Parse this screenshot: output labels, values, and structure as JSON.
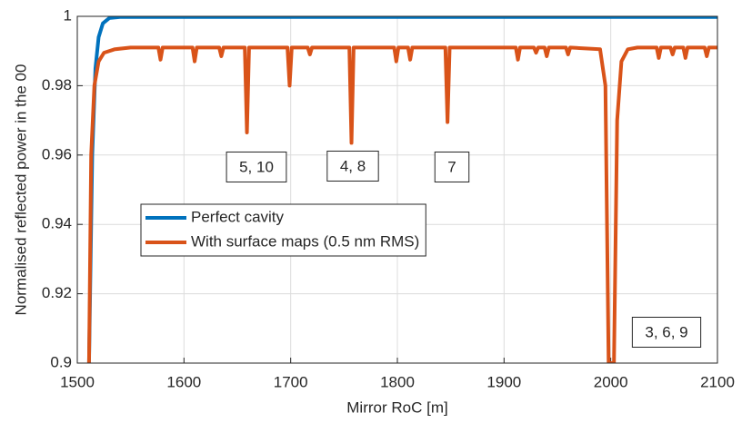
{
  "chart_data": {
    "type": "line",
    "xlabel": "Mirror RoC [m]",
    "ylabel": "Normalised reflected power in the 00",
    "xlim": [
      1500,
      2100
    ],
    "xticks": [
      1500,
      1600,
      1700,
      1800,
      1900,
      2000,
      2100
    ],
    "ylim": [
      0.9,
      1
    ],
    "yticks": [
      0.9,
      0.92,
      0.94,
      0.96,
      0.98,
      1
    ],
    "grid": true,
    "legend": "upper-left",
    "annotations": [
      "5, 10",
      "4, 8",
      "7",
      "3, 6, 9"
    ],
    "series": [
      {
        "name": "Perfect cavity",
        "color": "#0072bd",
        "x": [
          1511,
          1514,
          1517,
          1520,
          1524,
          1530,
          1540,
          2100
        ],
        "values": [
          0.9,
          0.96,
          0.985,
          0.994,
          0.998,
          0.9995,
          0.9998,
          0.9998
        ]
      },
      {
        "name": "With surface maps (0.5 nm RMS)",
        "color": "#d95319",
        "x": [
          1511,
          1513,
          1516,
          1520,
          1525,
          1535,
          1550,
          1576,
          1578,
          1580,
          1608,
          1610,
          1612,
          1633,
          1635,
          1637,
          1657,
          1659,
          1661,
          1697,
          1699,
          1701,
          1716,
          1718,
          1720,
          1755,
          1757,
          1759,
          1797,
          1799,
          1801,
          1810,
          1812,
          1814,
          1845,
          1847,
          1849,
          1911,
          1913,
          1915,
          1928,
          1930,
          1932,
          1938,
          1940,
          1942,
          1958,
          1960,
          1962,
          1990,
          1995,
          1998,
          2003,
          2006,
          2010,
          2016,
          2025,
          2043,
          2045,
          2047,
          2056,
          2058,
          2060,
          2068,
          2070,
          2072,
          2088,
          2090,
          2092,
          2100
        ],
        "values": [
          0.9,
          0.96,
          0.98,
          0.987,
          0.9895,
          0.9905,
          0.991,
          0.991,
          0.9875,
          0.991,
          0.991,
          0.987,
          0.991,
          0.991,
          0.9885,
          0.991,
          0.991,
          0.9665,
          0.991,
          0.991,
          0.98,
          0.991,
          0.991,
          0.989,
          0.991,
          0.991,
          0.9635,
          0.991,
          0.991,
          0.987,
          0.991,
          0.991,
          0.9875,
          0.991,
          0.991,
          0.9695,
          0.991,
          0.991,
          0.9875,
          0.991,
          0.991,
          0.9895,
          0.991,
          0.991,
          0.9885,
          0.991,
          0.991,
          0.989,
          0.991,
          0.9905,
          0.98,
          0.9,
          0.9,
          0.97,
          0.987,
          0.9905,
          0.991,
          0.991,
          0.988,
          0.991,
          0.991,
          0.989,
          0.991,
          0.991,
          0.988,
          0.991,
          0.991,
          0.9885,
          0.991,
          0.991
        ]
      }
    ]
  }
}
